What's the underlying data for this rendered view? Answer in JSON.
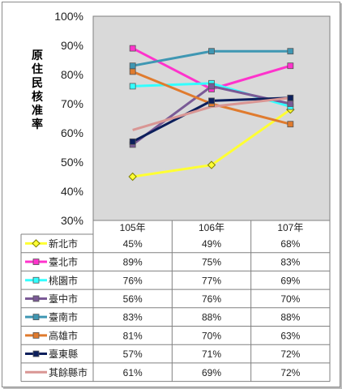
{
  "chart_data": {
    "type": "line",
    "title": "",
    "xlabel": "",
    "ylabel": "原住民核准率",
    "ylim": [
      30,
      100
    ],
    "yticks": [
      "30%",
      "40%",
      "50%",
      "60%",
      "70%",
      "80%",
      "90%",
      "100%"
    ],
    "grid": false,
    "legend": "data-table-below",
    "categories": [
      "105年",
      "106年",
      "107年"
    ],
    "series": [
      {
        "name": "新北市",
        "values": [
          45,
          49,
          68
        ],
        "labels": [
          "45%",
          "49%",
          "68%"
        ],
        "color": "#ffff33",
        "marker": "diamond"
      },
      {
        "name": "臺北市",
        "values": [
          89,
          75,
          83
        ],
        "labels": [
          "89%",
          "75%",
          "83%"
        ],
        "color": "#ff33cc",
        "marker": "square"
      },
      {
        "name": "桃園市",
        "values": [
          76,
          77,
          69
        ],
        "labels": [
          "76%",
          "77%",
          "69%"
        ],
        "color": "#33ffff",
        "marker": "square"
      },
      {
        "name": "臺中市",
        "values": [
          56,
          76,
          70
        ],
        "labels": [
          "56%",
          "76%",
          "70%"
        ],
        "color": "#7a5a96",
        "marker": "square"
      },
      {
        "name": "臺南市",
        "values": [
          83,
          88,
          88
        ],
        "labels": [
          "83%",
          "88%",
          "88%"
        ],
        "color": "#3f97b3",
        "marker": "square"
      },
      {
        "name": "高雄市",
        "values": [
          81,
          70,
          63
        ],
        "labels": [
          "81%",
          "70%",
          "63%"
        ],
        "color": "#e07b2e",
        "marker": "square"
      },
      {
        "name": "臺東縣",
        "values": [
          57,
          71,
          72
        ],
        "labels": [
          "57%",
          "71%",
          "72%"
        ],
        "color": "#0c1f5c",
        "marker": "square"
      },
      {
        "name": "其餘縣市",
        "values": [
          61,
          69,
          72
        ],
        "labels": [
          "61%",
          "69%",
          "72%"
        ],
        "color": "#d99694",
        "marker": "none"
      }
    ],
    "plot_background": "#d9d9d9"
  }
}
